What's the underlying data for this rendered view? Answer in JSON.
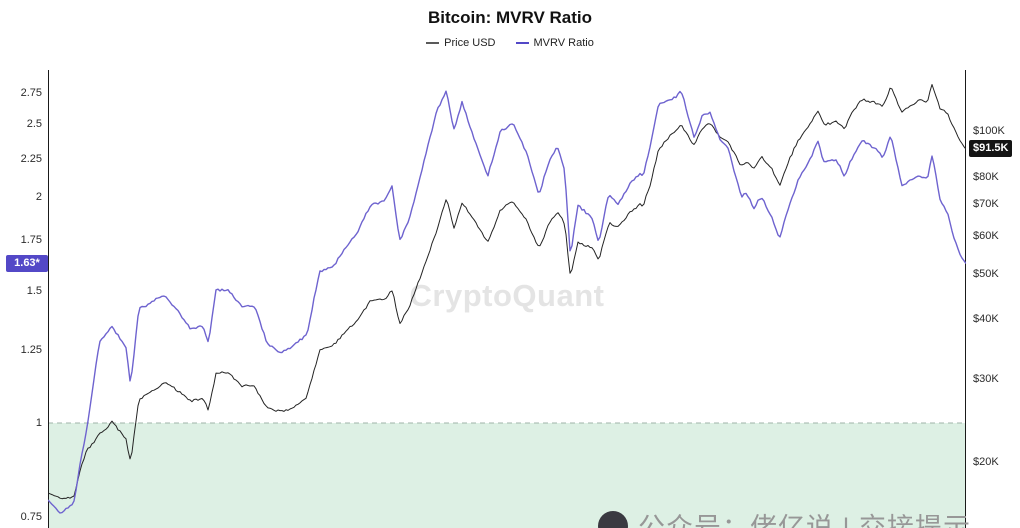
{
  "header": {
    "title": "Bitcoin: MVRV Ratio"
  },
  "legend": {
    "price_label": "Price USD",
    "mvrv_label": "MVRV Ratio",
    "price_color": "#5a5a5a",
    "mvrv_color": "#5348c7"
  },
  "watermark": "CryptoQuant",
  "bottom_watermark": "公众号：佬亿说 | 交接提示",
  "chart_data": {
    "type": "line",
    "title": "Bitcoin: MVRV Ratio",
    "grid": "off",
    "legend_position": "top-center",
    "x_tick_labels_visible": false,
    "left_axis": {
      "title": "MVRV Ratio",
      "scale": "log",
      "ticks": [
        {
          "label": "2.75",
          "value": 2.75
        },
        {
          "label": "2.5",
          "value": 2.5
        },
        {
          "label": "2.25",
          "value": 2.25
        },
        {
          "label": "2",
          "value": 2
        },
        {
          "label": "1.75",
          "value": 1.75
        },
        {
          "label": "1.5",
          "value": 1.5
        },
        {
          "label": "1.25",
          "value": 1.25
        },
        {
          "label": "1",
          "value": 1
        },
        {
          "label": "0.75",
          "value": 0.75
        }
      ]
    },
    "right_axis": {
      "title": "Price USD",
      "scale": "log",
      "ticks": [
        {
          "label": "$100K",
          "value": 100
        },
        {
          "label": "$80K",
          "value": 80
        },
        {
          "label": "$70K",
          "value": 70
        },
        {
          "label": "$60K",
          "value": 60
        },
        {
          "label": "$50K",
          "value": 50
        },
        {
          "label": "$40K",
          "value": 40
        },
        {
          "label": "$30K",
          "value": 30
        },
        {
          "label": "$20K",
          "value": 20
        }
      ]
    },
    "current": {
      "mvrv_label": "1.63*",
      "mvrv_value": 1.63,
      "mvrv_badge_color": "#5348c7",
      "price_label": "$91.5K",
      "price_value_usd_k": 91.5,
      "price_badge_color": "#141414"
    },
    "threshold_zone": {
      "max_value": 1,
      "fill": "#ddf0e4",
      "line_color": "#9fb3a8",
      "line_style": "dashed"
    },
    "series": [
      {
        "name": "Price USD",
        "axis": "right",
        "unit": "USD thousands",
        "color": "#242424",
        "points": [
          [
            0,
            17.2
          ],
          [
            0.014,
            16.7
          ],
          [
            0.028,
            16.6
          ],
          [
            0.035,
            19
          ],
          [
            0.042,
            21
          ],
          [
            0.056,
            23.1
          ],
          [
            0.07,
            24.5
          ],
          [
            0.085,
            22.4
          ],
          [
            0.09,
            20.1
          ],
          [
            0.099,
            27.5
          ],
          [
            0.113,
            28.5
          ],
          [
            0.127,
            29.5
          ],
          [
            0.141,
            28
          ],
          [
            0.155,
            26.8
          ],
          [
            0.169,
            27
          ],
          [
            0.175,
            25.5
          ],
          [
            0.183,
            30.5
          ],
          [
            0.197,
            30.5
          ],
          [
            0.211,
            29.2
          ],
          [
            0.225,
            29.2
          ],
          [
            0.239,
            26
          ],
          [
            0.254,
            25.8
          ],
          [
            0.268,
            26.5
          ],
          [
            0.282,
            27.5
          ],
          [
            0.296,
            34
          ],
          [
            0.31,
            35
          ],
          [
            0.324,
            37.5
          ],
          [
            0.338,
            39.5
          ],
          [
            0.352,
            43.5
          ],
          [
            0.366,
            44.2
          ],
          [
            0.375,
            46.7
          ],
          [
            0.383,
            39.5
          ],
          [
            0.394,
            43
          ],
          [
            0.408,
            51
          ],
          [
            0.423,
            62
          ],
          [
            0.434,
            73.1
          ],
          [
            0.442,
            62
          ],
          [
            0.451,
            70
          ],
          [
            0.465,
            64
          ],
          [
            0.479,
            58
          ],
          [
            0.493,
            67.5
          ],
          [
            0.507,
            70
          ],
          [
            0.521,
            65
          ],
          [
            0.535,
            57
          ],
          [
            0.544,
            63
          ],
          [
            0.555,
            68
          ],
          [
            0.563,
            64
          ],
          [
            0.569,
            49.5
          ],
          [
            0.577,
            59
          ],
          [
            0.592,
            57.5
          ],
          [
            0.6,
            53.5
          ],
          [
            0.611,
            63.5
          ],
          [
            0.62,
            62
          ],
          [
            0.634,
            67
          ],
          [
            0.645,
            69.5
          ],
          [
            0.648,
            68.8
          ],
          [
            0.656,
            76
          ],
          [
            0.665,
            90
          ],
          [
            0.676,
            96.5
          ],
          [
            0.685,
            101
          ],
          [
            0.69,
            104
          ],
          [
            0.699,
            97
          ],
          [
            0.704,
            93.5
          ],
          [
            0.713,
            102
          ],
          [
            0.721,
            104.5
          ],
          [
            0.732,
            98
          ],
          [
            0.741,
            96.5
          ],
          [
            0.755,
            84.5
          ],
          [
            0.761,
            86
          ],
          [
            0.769,
            83
          ],
          [
            0.777,
            87.5
          ],
          [
            0.789,
            82.5
          ],
          [
            0.797,
            76.5
          ],
          [
            0.806,
            85
          ],
          [
            0.817,
            94
          ],
          [
            0.831,
            103.5
          ],
          [
            0.839,
            111
          ],
          [
            0.845,
            104
          ],
          [
            0.859,
            105.5
          ],
          [
            0.868,
            101
          ],
          [
            0.873,
            107.5
          ],
          [
            0.887,
            118
          ],
          [
            0.901,
            116.5
          ],
          [
            0.91,
            114
          ],
          [
            0.918,
            124
          ],
          [
            0.93,
            108.5
          ],
          [
            0.938,
            112
          ],
          [
            0.949,
            116
          ],
          [
            0.958,
            114
          ],
          [
            0.963,
            125
          ],
          [
            0.972,
            110
          ],
          [
            0.98,
            107
          ],
          [
            0.986,
            101.5
          ],
          [
            0.994,
            95
          ],
          [
            1,
            91.5
          ]
        ]
      },
      {
        "name": "MVRV Ratio",
        "axis": "left",
        "unit": "ratio",
        "color": "#6e63cf",
        "points": [
          [
            0,
            0.79
          ],
          [
            0.014,
            0.76
          ],
          [
            0.028,
            0.78
          ],
          [
            0.035,
            0.88
          ],
          [
            0.042,
            0.98
          ],
          [
            0.056,
            1.28
          ],
          [
            0.07,
            1.33
          ],
          [
            0.085,
            1.25
          ],
          [
            0.09,
            1.12
          ],
          [
            0.099,
            1.42
          ],
          [
            0.113,
            1.45
          ],
          [
            0.127,
            1.48
          ],
          [
            0.141,
            1.42
          ],
          [
            0.155,
            1.35
          ],
          [
            0.169,
            1.35
          ],
          [
            0.175,
            1.28
          ],
          [
            0.183,
            1.5
          ],
          [
            0.197,
            1.5
          ],
          [
            0.211,
            1.43
          ],
          [
            0.225,
            1.42
          ],
          [
            0.239,
            1.26
          ],
          [
            0.254,
            1.24
          ],
          [
            0.268,
            1.27
          ],
          [
            0.282,
            1.31
          ],
          [
            0.296,
            1.6
          ],
          [
            0.31,
            1.63
          ],
          [
            0.324,
            1.72
          ],
          [
            0.338,
            1.8
          ],
          [
            0.352,
            1.96
          ],
          [
            0.366,
            1.97
          ],
          [
            0.375,
            2.06
          ],
          [
            0.383,
            1.73
          ],
          [
            0.394,
            1.86
          ],
          [
            0.408,
            2.18
          ],
          [
            0.423,
            2.6
          ],
          [
            0.434,
            2.77
          ],
          [
            0.442,
            2.45
          ],
          [
            0.451,
            2.68
          ],
          [
            0.465,
            2.4
          ],
          [
            0.479,
            2.15
          ],
          [
            0.493,
            2.45
          ],
          [
            0.507,
            2.5
          ],
          [
            0.521,
            2.3
          ],
          [
            0.535,
            2
          ],
          [
            0.544,
            2.18
          ],
          [
            0.555,
            2.32
          ],
          [
            0.563,
            2.15
          ],
          [
            0.569,
            1.66
          ],
          [
            0.577,
            1.95
          ],
          [
            0.592,
            1.88
          ],
          [
            0.6,
            1.74
          ],
          [
            0.611,
            2.03
          ],
          [
            0.62,
            1.97
          ],
          [
            0.634,
            2.1
          ],
          [
            0.645,
            2.16
          ],
          [
            0.648,
            2.13
          ],
          [
            0.656,
            2.33
          ],
          [
            0.665,
            2.66
          ],
          [
            0.676,
            2.7
          ],
          [
            0.685,
            2.72
          ],
          [
            0.69,
            2.76
          ],
          [
            0.699,
            2.5
          ],
          [
            0.704,
            2.38
          ],
          [
            0.713,
            2.55
          ],
          [
            0.721,
            2.58
          ],
          [
            0.732,
            2.38
          ],
          [
            0.741,
            2.32
          ],
          [
            0.755,
            2
          ],
          [
            0.761,
            2.02
          ],
          [
            0.769,
            1.94
          ],
          [
            0.777,
            2.02
          ],
          [
            0.789,
            1.89
          ],
          [
            0.797,
            1.77
          ],
          [
            0.806,
            1.93
          ],
          [
            0.817,
            2.1
          ],
          [
            0.831,
            2.26
          ],
          [
            0.839,
            2.38
          ],
          [
            0.845,
            2.22
          ],
          [
            0.859,
            2.22
          ],
          [
            0.868,
            2.1
          ],
          [
            0.873,
            2.2
          ],
          [
            0.887,
            2.38
          ],
          [
            0.901,
            2.32
          ],
          [
            0.91,
            2.25
          ],
          [
            0.918,
            2.42
          ],
          [
            0.93,
            2.08
          ],
          [
            0.938,
            2.12
          ],
          [
            0.949,
            2.16
          ],
          [
            0.958,
            2.12
          ],
          [
            0.963,
            2.28
          ],
          [
            0.972,
            1.98
          ],
          [
            0.98,
            1.9
          ],
          [
            0.986,
            1.78
          ],
          [
            0.994,
            1.67
          ],
          [
            1,
            1.63
          ]
        ]
      }
    ]
  }
}
